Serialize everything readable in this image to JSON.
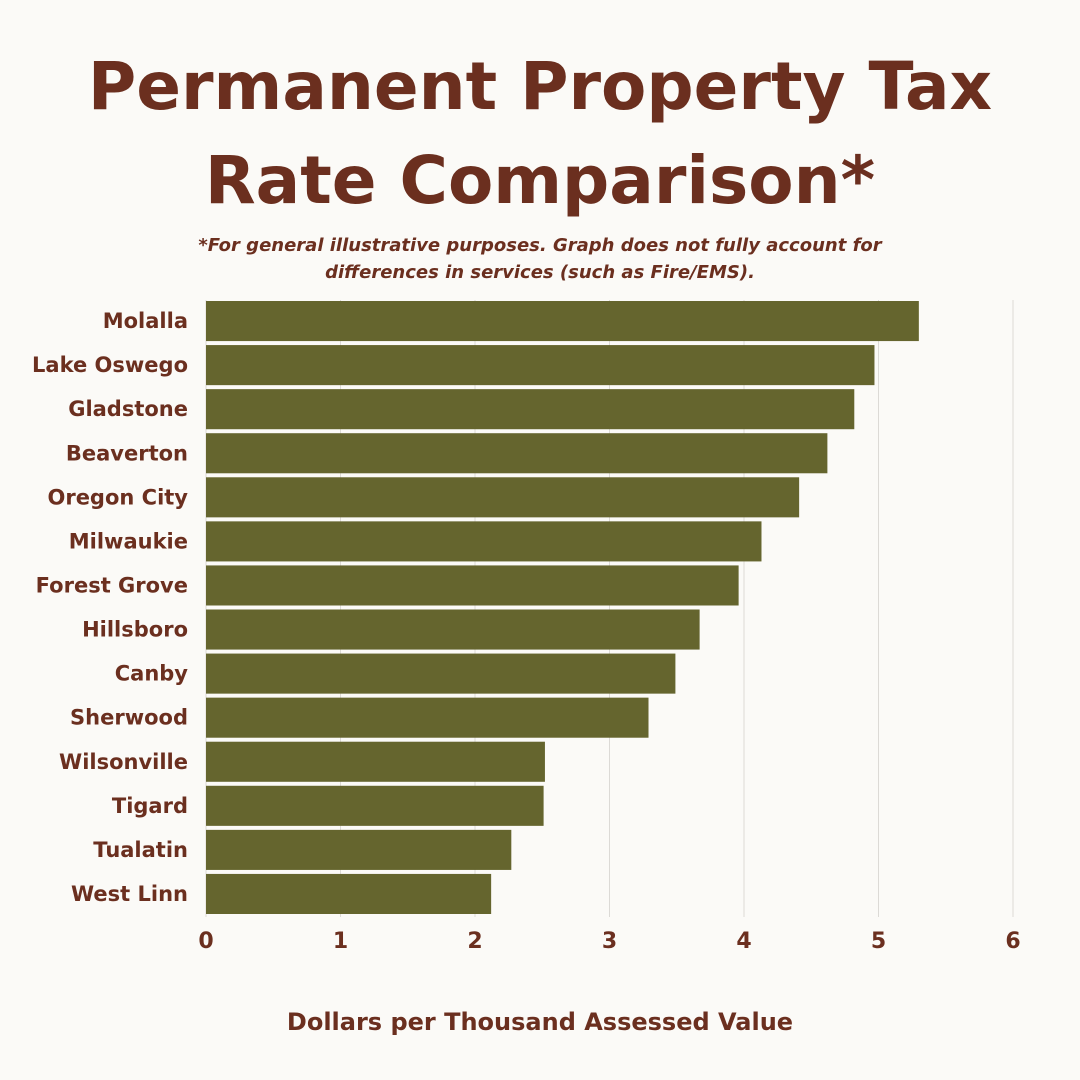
{
  "chart_data": {
    "type": "bar",
    "orientation": "horizontal",
    "title": "Permanent Property Tax Rate Comparison*",
    "subtitle": "*For general illustrative purposes. Graph does not fully account for differences in services (such as Fire/EMS).",
    "xlabel": "Dollars per Thousand Assessed Value",
    "ylabel": "",
    "categories": [
      "Molalla",
      "Lake Oswego",
      "Gladstone",
      "Beaverton",
      "Oregon City",
      "Milwaukie",
      "Forest Grove",
      "Hillsboro",
      "Canby",
      "Sherwood",
      "Wilsonville",
      "Tigard",
      "Tualatin",
      "West Linn"
    ],
    "values": [
      5.3,
      4.97,
      4.82,
      4.62,
      4.41,
      4.13,
      3.96,
      3.67,
      3.49,
      3.29,
      2.52,
      2.51,
      2.27,
      2.12
    ],
    "xlim": [
      0,
      6
    ],
    "xticks": [
      "0",
      "1",
      "2",
      "3",
      "4",
      "5",
      "6"
    ],
    "grid": true,
    "legend": "none",
    "colors": {
      "bar": "#65652e",
      "text": "#6b2f1f",
      "grid": "#dcdad6",
      "background": "#fbfaf7"
    }
  }
}
